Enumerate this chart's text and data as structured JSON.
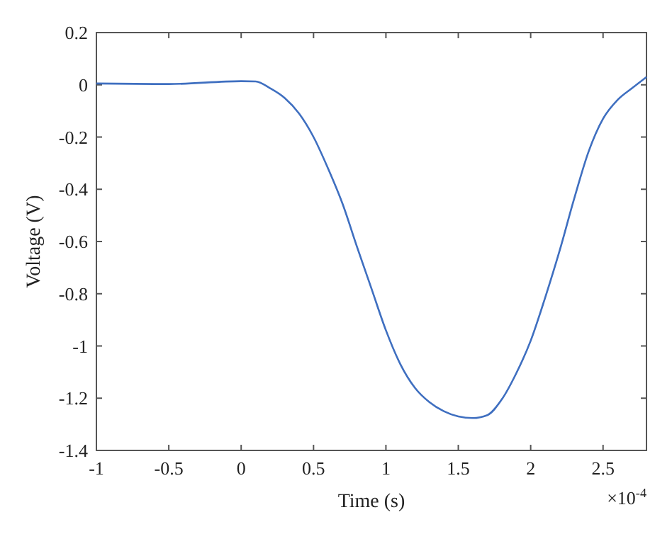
{
  "chart_data": {
    "type": "line",
    "xlabel": "Time (s)",
    "ylabel": "Voltage (V)",
    "annotations": [
      "×10$^{-4}$"
    ],
    "x": [
      -1,
      -0.5,
      0,
      0.1,
      0.2,
      0.3,
      0.4,
      0.5,
      0.6,
      0.7,
      0.8,
      0.9,
      1,
      1.1,
      1.2,
      1.3,
      1.4,
      1.5,
      1.6,
      1.7,
      1.8,
      1.9,
      2,
      2.1,
      2.2,
      2.3,
      2.4,
      2.5,
      2.6,
      2.7,
      2.8
    ],
    "series": [
      {
        "color": "#3f6fc0",
        "values": [
          0.005,
          0.003,
          0.014,
          0.013,
          -0.013,
          -0.05,
          -0.11,
          -0.2,
          -0.32,
          -0.455,
          -0.62,
          -0.78,
          -0.94,
          -1.07,
          -1.16,
          -1.215,
          -1.25,
          -1.27,
          -1.276,
          -1.265,
          -1.205,
          -1.105,
          -0.98,
          -0.815,
          -0.635,
          -0.437,
          -0.256,
          -0.13,
          -0.058,
          -0.013,
          0.03
        ]
      }
    ],
    "xlim": [
      -1,
      2.8
    ],
    "xticks": [
      -1,
      -0.5,
      0,
      0.5,
      1,
      1.5,
      2,
      2.5
    ],
    "ylim": [
      -1.4,
      0.2
    ],
    "yticks": [
      -1.4,
      -1.2,
      -1,
      -0.8,
      -0.6,
      -0.4,
      -0.2,
      0,
      0.2
    ],
    "grid": false,
    "marker": "none",
    "line_style": "solid"
  }
}
